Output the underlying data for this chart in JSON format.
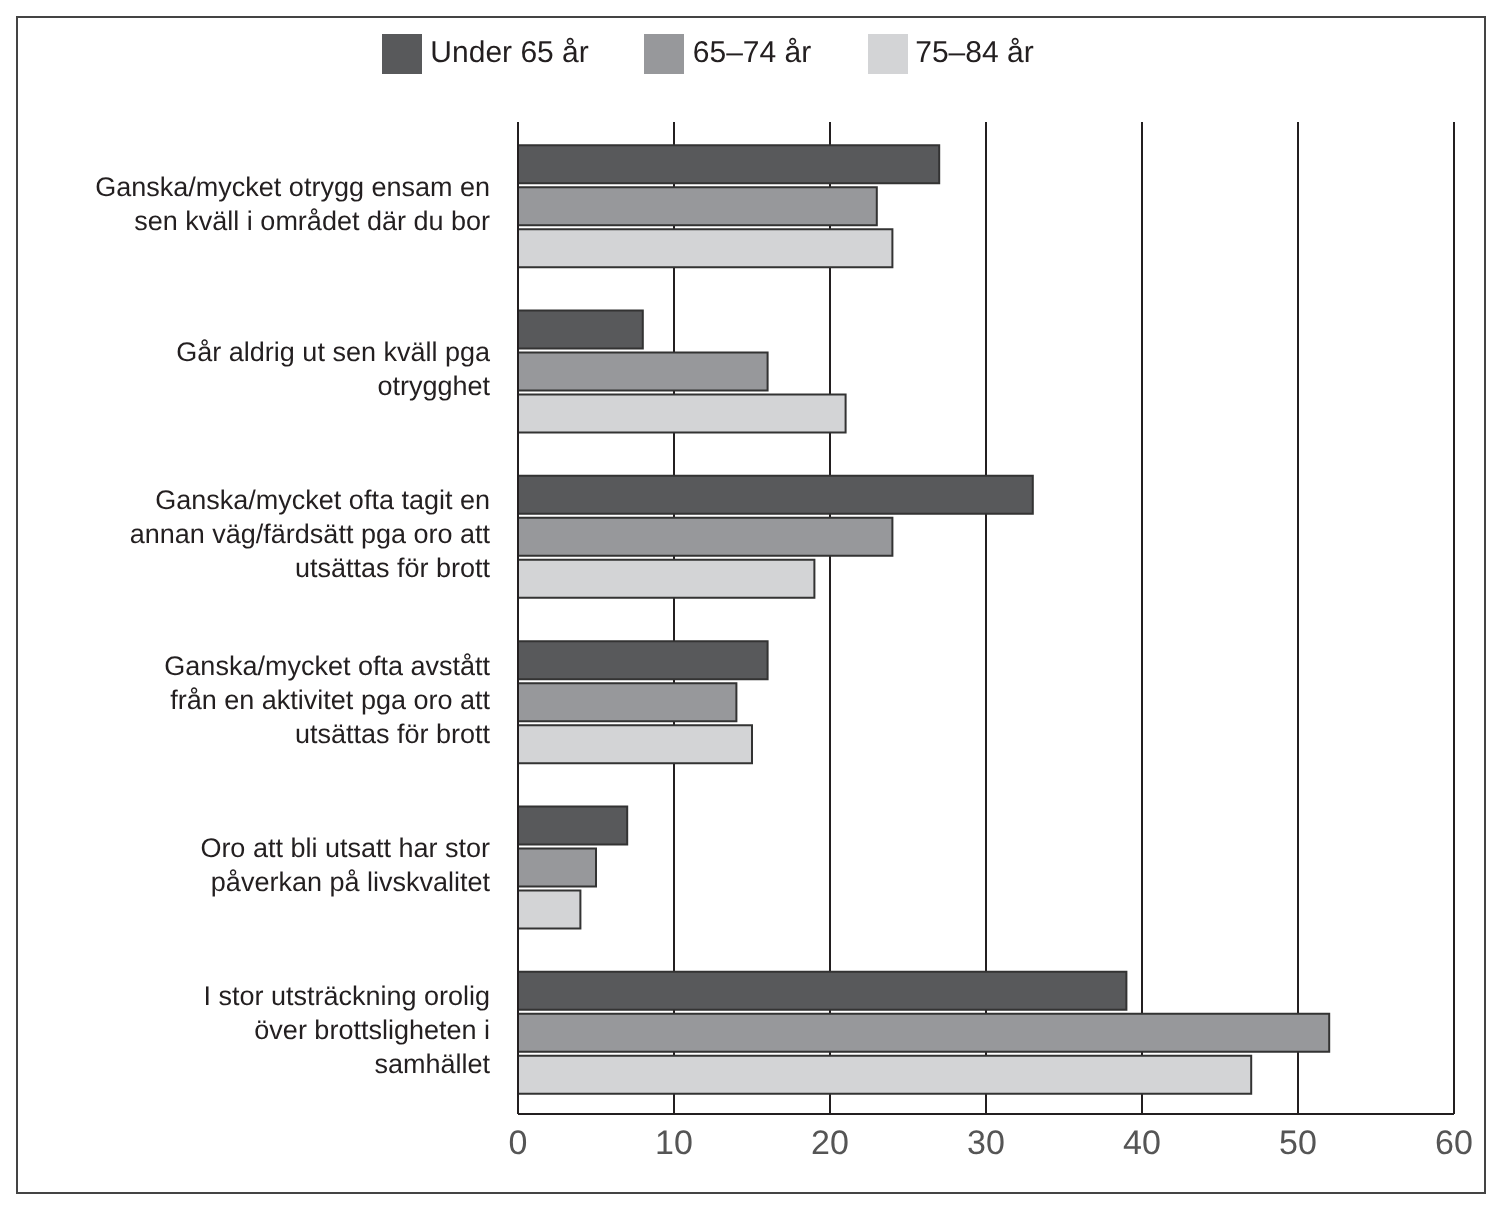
{
  "chart_data": {
    "type": "bar",
    "orientation": "horizontal",
    "categories": [
      "Ganska/mycket otrygg ensam en sen kväll i området där du bor",
      "Går aldrig ut sen kväll pga otrygghet",
      "Ganska/mycket ofta tagit en annan väg/färdsätt pga oro att utsättas för brott",
      "Ganska/mycket ofta avstått från en aktivitet pga oro att utsättas för brott",
      "Oro att bli utsatt har stor påverkan på livskvalitet",
      "I stor utsträckning orolig över brottsligheten i samhället"
    ],
    "series": [
      {
        "name": "Under 65 år",
        "color": "#58595b",
        "values": [
          27,
          8,
          33,
          16,
          7,
          39
        ]
      },
      {
        "name": "65–74 år",
        "color": "#97989b",
        "values": [
          23,
          16,
          24,
          14,
          5,
          52
        ]
      },
      {
        "name": "75–84 år",
        "color": "#d3d4d6",
        "values": [
          24,
          21,
          19,
          15,
          4,
          47
        ]
      }
    ],
    "xlim": [
      0,
      60
    ],
    "xticks": [
      0,
      10,
      20,
      30,
      40,
      50,
      60
    ],
    "grid": "x",
    "legend": "top"
  }
}
